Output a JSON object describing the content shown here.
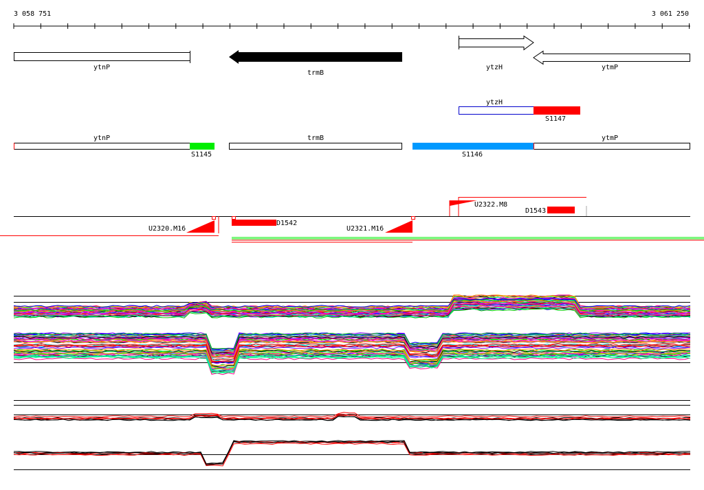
{
  "ruler": {
    "start": "3 058 751",
    "end": "3 061 250"
  },
  "genes": {
    "ytnP": "ytnP",
    "trmB": "trmB",
    "ytzH": "ytzH",
    "ytmP": "ytmP"
  },
  "segments": {
    "s1147": "S1147",
    "s1145": "S1145",
    "s1146": "S1146"
  },
  "features": {
    "u2320": "U2320.M16",
    "u2321": "U2321.M16",
    "u2322": "U2322.M8",
    "d1542": "D1542",
    "d1543": "D1543"
  },
  "colors": {
    "red": "#ff0000",
    "green": "#00ee00",
    "blue": "#0099ff",
    "navy": "#0000cc",
    "trace_palette": [
      "#ff0000",
      "#00cc00",
      "#0000ff",
      "#ff00ff",
      "#00cccc",
      "#cccc00",
      "#ff8800",
      "#8800ff",
      "#888888",
      "#000000",
      "#00ff88",
      "#ff0088"
    ]
  }
}
